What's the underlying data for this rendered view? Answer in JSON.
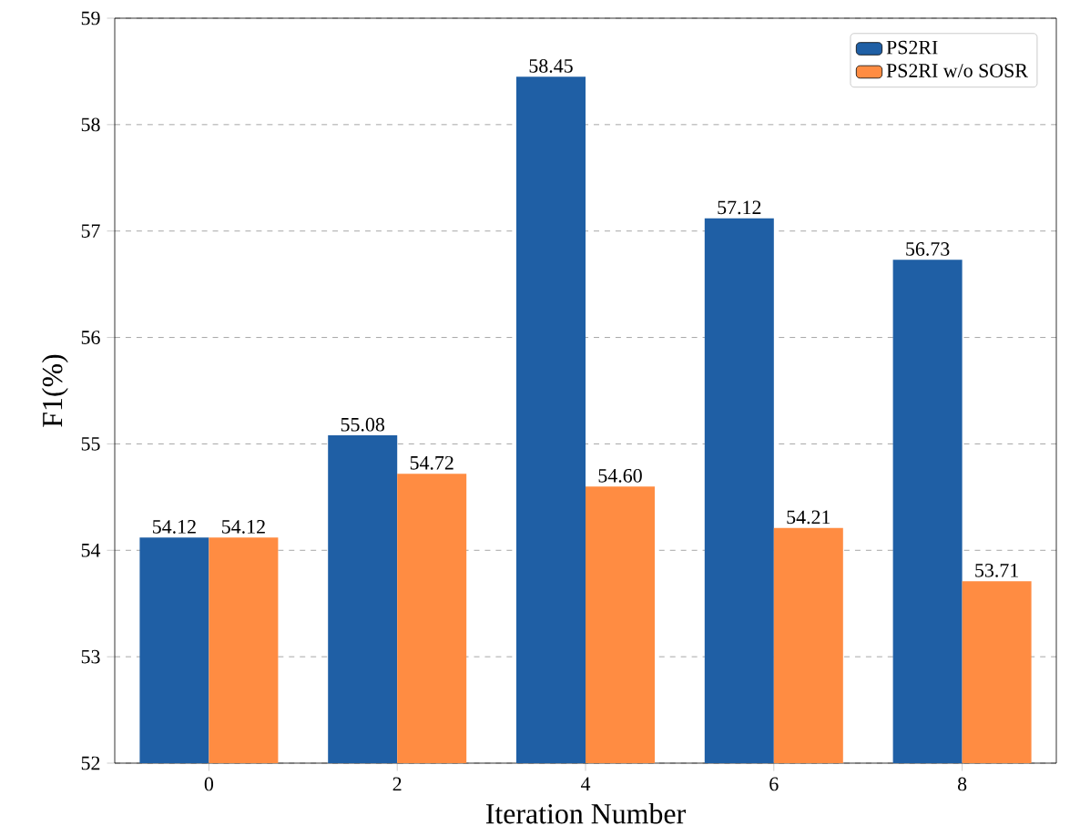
{
  "chart_data": {
    "type": "bar",
    "xlabel": "Iteration Number",
    "ylabel": "F1(%)",
    "categories": [
      "0",
      "2",
      "4",
      "6",
      "8"
    ],
    "series": [
      {
        "name": "PS2RI",
        "color": "#1f5fa5",
        "values": [
          54.12,
          55.08,
          58.45,
          57.12,
          56.73
        ],
        "value_labels": [
          "54.12",
          "55.08",
          "58.45",
          "57.12",
          "56.73"
        ]
      },
      {
        "name": "PS2RI w/o SOSR",
        "color": "#ff8c42",
        "values": [
          54.12,
          54.72,
          54.6,
          54.21,
          53.71
        ],
        "value_labels": [
          "54.12",
          "54.72",
          "54.60",
          "54.21",
          "53.71"
        ]
      }
    ],
    "ylim": [
      52,
      59
    ],
    "yticks": [
      52,
      53,
      54,
      55,
      56,
      57,
      58,
      59
    ],
    "grid": "y",
    "legend": "top right"
  }
}
